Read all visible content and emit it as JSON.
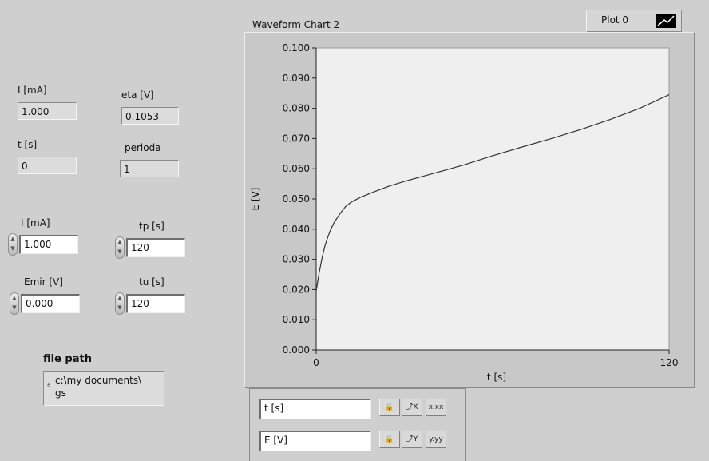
{
  "indicators": {
    "i_label": "I [mA]",
    "i_value": "1.000",
    "eta_label": "eta [V]",
    "eta_value": "0.1053",
    "t_label": "t [s]",
    "t_value": "0",
    "perioda_label": "perioda",
    "perioda_value": "1"
  },
  "controls": {
    "i_label": "I [mA]",
    "i_value": "1.000",
    "tp_label": "tp [s]",
    "tp_value": "120",
    "emir_label": "Emir [V]",
    "emir_value": "0.000",
    "tu_label": "tu [s]",
    "tu_value": "120"
  },
  "file": {
    "label": "file path",
    "path_line1": "c:\\my documents\\",
    "path_line2": "gs"
  },
  "chart": {
    "title": "Waveform Chart 2",
    "plot_name": "Plot 0"
  },
  "scale_legend": {
    "x_name": "t [s]",
    "y_name": "E [V]",
    "x_format": "x.xx",
    "y_format": "y.yy"
  },
  "chart_data": {
    "type": "line",
    "title": "Waveform Chart 2",
    "xlabel": "t [s]",
    "ylabel": "E [V]",
    "xlim": [
      0,
      120
    ],
    "ylim": [
      0,
      0.1
    ],
    "x_ticks": [
      "0",
      "120"
    ],
    "y_ticks": [
      "0.000",
      "0.010",
      "0.020",
      "0.030",
      "0.040",
      "0.050",
      "0.060",
      "0.070",
      "0.080",
      "0.090",
      "0.100"
    ],
    "grid": false,
    "legend": "top-right",
    "series": [
      {
        "name": "Plot 0",
        "color": "#333333",
        "x": [
          0,
          1,
          2,
          3,
          4,
          5,
          6,
          8,
          10,
          12,
          15,
          20,
          25,
          30,
          40,
          50,
          60,
          70,
          80,
          90,
          100,
          110,
          120
        ],
        "y": [
          0.0195,
          0.0255,
          0.0305,
          0.0345,
          0.0375,
          0.04,
          0.042,
          0.045,
          0.0475,
          0.049,
          0.0505,
          0.0525,
          0.0543,
          0.0558,
          0.0585,
          0.0612,
          0.0643,
          0.0672,
          0.07,
          0.073,
          0.0763,
          0.08,
          0.0845
        ]
      }
    ]
  }
}
